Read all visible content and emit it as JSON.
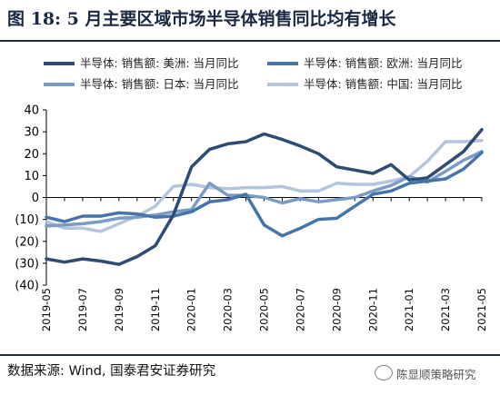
{
  "header": {
    "title": "图 18: 5 月主要区域市场半导体销售同比均有增长"
  },
  "footer": {
    "source": "数据来源: Wind, 国泰君安证券研究",
    "watermark": "陈显顺策略研究"
  },
  "chart_data": {
    "type": "line",
    "title": "",
    "xlabel": "",
    "ylabel": "",
    "ylim": [
      -40,
      40
    ],
    "yticks": [
      40,
      30,
      20,
      10,
      0,
      -10,
      -20,
      -30,
      -40
    ],
    "ytick_labels": [
      "40",
      "30",
      "20",
      "10",
      "0",
      "(10)",
      "(20)",
      "(30)",
      "(40)"
    ],
    "grid": false,
    "legend_position": "top",
    "x": [
      "2019-05",
      "2019-06",
      "2019-07",
      "2019-08",
      "2019-09",
      "2019-10",
      "2019-11",
      "2019-12",
      "2020-01",
      "2020-02",
      "2020-03",
      "2020-04",
      "2020-05",
      "2020-06",
      "2020-07",
      "2020-08",
      "2020-09",
      "2020-10",
      "2020-11",
      "2020-12",
      "2021-01",
      "2021-02",
      "2021-03",
      "2021-04",
      "2021-05"
    ],
    "xtick_labels": [
      "2019-05",
      "2019-07",
      "2019-09",
      "2019-11",
      "2020-01",
      "2020-03",
      "2020-05",
      "2020-07",
      "2020-09",
      "2020-11",
      "2021-01",
      "2021-03",
      "2021-05"
    ],
    "series": [
      {
        "name": "半导体: 销售额: 美洲: 当月同比",
        "color": "#2e4b74",
        "width": 3.5,
        "values": [
          -28,
          -29.5,
          -28,
          -29,
          -30.5,
          -27,
          -22,
          -8,
          14,
          22,
          24.5,
          25.5,
          29,
          26.5,
          23.5,
          20,
          14,
          12.5,
          11,
          15,
          8,
          9,
          15,
          21,
          31
        ]
      },
      {
        "name": "半导体: 销售额: 欧洲: 当月同比",
        "color": "#4774a8",
        "width": 3.5,
        "values": [
          -9,
          -11,
          -8.5,
          -8.5,
          -7,
          -7.5,
          -9,
          -8.5,
          -6.5,
          -2,
          -1,
          1.5,
          -12.5,
          -17.5,
          -14,
          -10,
          -9.5,
          -4,
          1.5,
          3,
          6.5,
          7.5,
          8.5,
          13,
          20.5
        ]
      },
      {
        "name": "半导体: 销售额: 日本: 当月同比",
        "color": "#7a9bc6",
        "width": 3.5,
        "values": [
          -13,
          -12.5,
          -12,
          -11,
          -9.5,
          -9,
          -8,
          -6.5,
          -5.5,
          6.5,
          1,
          1,
          0,
          -2.5,
          -0.5,
          -2,
          -1,
          0,
          3,
          5.5,
          9.5,
          7,
          12,
          17,
          21
        ]
      },
      {
        "name": "半导体: 销售额: 中国: 当月同比",
        "color": "#b4c5de",
        "width": 3.5,
        "values": [
          -11,
          -14,
          -14,
          -15.5,
          -12,
          -8.5,
          -4,
          5,
          6,
          4.5,
          4,
          4.5,
          4.5,
          5,
          3,
          3,
          6.5,
          6,
          6,
          7.5,
          9.5,
          16.5,
          25.5,
          25.5,
          26
        ]
      }
    ]
  }
}
